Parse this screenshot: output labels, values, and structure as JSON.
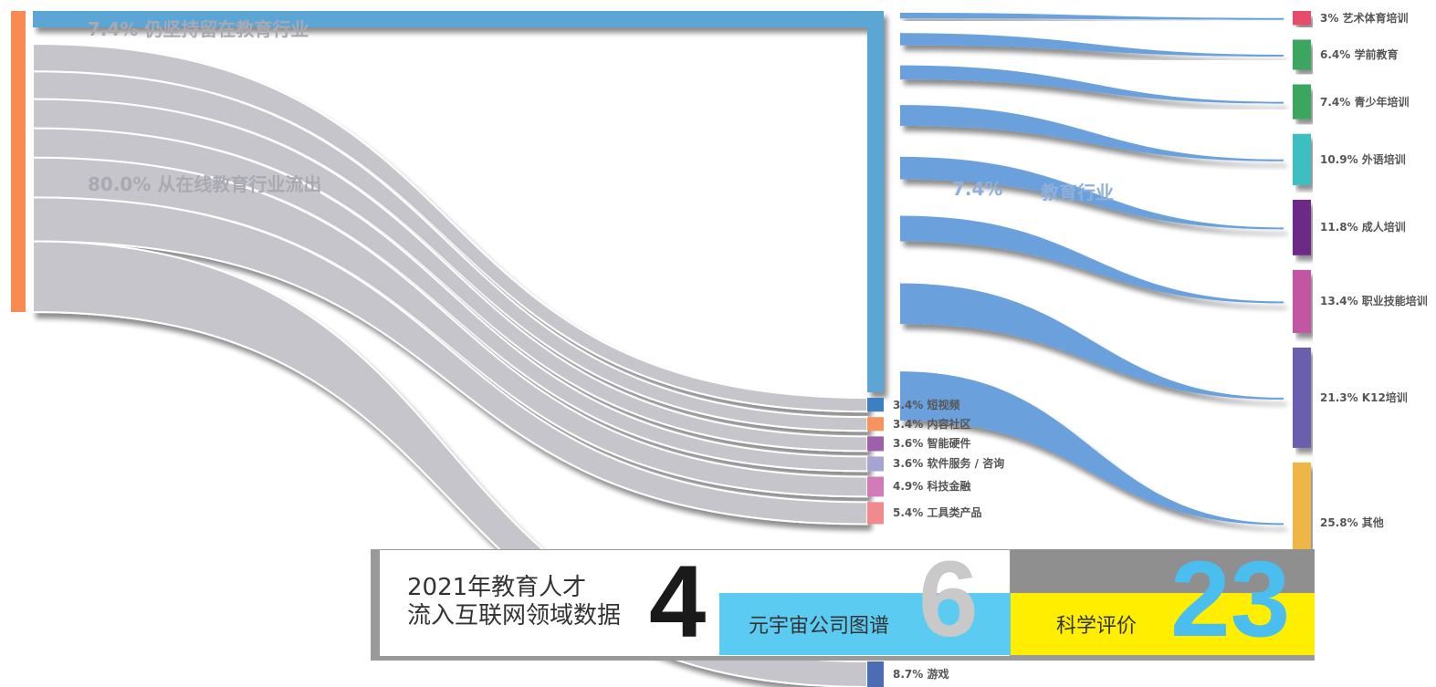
{
  "colors": {
    "source_node": "#f78b51",
    "retained_flow": "#5ba6d6",
    "outflow": "#c6c5cb",
    "edu_flow": "#6aa1dc"
  },
  "labels": {
    "retained": "7.4% 仍坚持留在教育行业",
    "outflow": "80.0% 从在线教育行业流出",
    "middle_prefix": "7.4%",
    "middle_suffix": "教育行业"
  },
  "chart_data": {
    "type": "sankey",
    "source": "在线教育行业",
    "edu_targets": [
      {
        "name": "3% 艺术体育培训",
        "pct": 3,
        "color": "#e74d6a"
      },
      {
        "name": "6.4% 学前教育",
        "pct": 6.4,
        "color": "#3aa660"
      },
      {
        "name": "7.4% 青少年培训",
        "pct": 7.4,
        "color": "#3aa660"
      },
      {
        "name": "10.9% 外语培训",
        "pct": 10.9,
        "color": "#3dbec1"
      },
      {
        "name": "11.8% 成人培训",
        "pct": 11.8,
        "color": "#6c2c86"
      },
      {
        "name": "13.4% 职业技能培训",
        "pct": 13.4,
        "color": "#c357a2"
      },
      {
        "name": "21.3% K12培训",
        "pct": 21.3,
        "color": "#6a5fac"
      },
      {
        "name": "25.8% 其他",
        "pct": 25.8,
        "color": "#eeb547"
      }
    ],
    "internet_targets": [
      {
        "name": "3.4% 短视频",
        "pct": 3.4,
        "color": "#3c7fc2"
      },
      {
        "name": "3.4% 内容社区",
        "pct": 3.4,
        "color": "#f6935f"
      },
      {
        "name": "3.6% 智能硬件",
        "pct": 3.6,
        "color": "#9d61ab"
      },
      {
        "name": "3.6% 软件服务 / 咨询",
        "pct": 3.6,
        "color": "#a5a4d2"
      },
      {
        "name": "4.9% 科技金融",
        "pct": 4.9,
        "color": "#d37ab8"
      },
      {
        "name": "5.4% 工具类产品",
        "pct": 5.4,
        "color": "#f08a8c"
      },
      {
        "name": "8.7% 游戏",
        "pct": 8.7,
        "color": "#4c6cb3"
      }
    ]
  },
  "banner": {
    "title_line1": "2021年教育人才",
    "title_line2": "流入互联网领域数据",
    "num_main": "4",
    "blue_label": "元宇宙公司图谱",
    "num_blue": "6",
    "yellow_label": "科学评价",
    "num_yellow": "23"
  }
}
